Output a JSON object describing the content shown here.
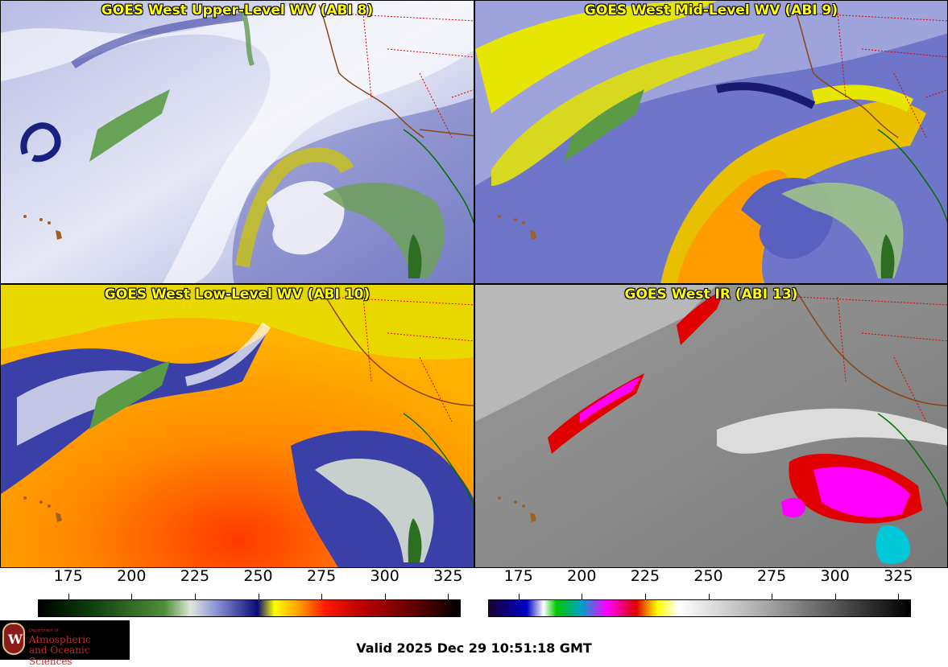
{
  "panels": [
    {
      "title": "GOES West Upper-Level WV (ABI 8)",
      "product": "upper-wv"
    },
    {
      "title": "GOES West Mid-Level WV (ABI 9)",
      "product": "mid-wv"
    },
    {
      "title": "GOES West Low-Level WV (ABI 10)",
      "product": "low-wv"
    },
    {
      "title": "GOES West IR (ABI 13)",
      "product": "ir"
    }
  ],
  "colorbars": {
    "wv": {
      "ticks": [
        "175",
        "200",
        "225",
        "250",
        "275",
        "300",
        "325"
      ],
      "tick_values": [
        175,
        200,
        225,
        250,
        275,
        300,
        325
      ],
      "range": [
        163,
        330
      ],
      "stops": [
        [
          "#000000",
          0
        ],
        [
          "#0d3d0d",
          0.12
        ],
        [
          "#4f8f3a",
          0.3
        ],
        [
          "#dfe8d8",
          0.36
        ],
        [
          "#8f95d8",
          0.42
        ],
        [
          "#0b0b78",
          0.52
        ],
        [
          "#ffff00",
          0.56
        ],
        [
          "#ff9900",
          0.62
        ],
        [
          "#ff1a00",
          0.68
        ],
        [
          "#c20000",
          0.76
        ],
        [
          "#5a0000",
          0.9
        ],
        [
          "#000000",
          1
        ]
      ]
    },
    "ir": {
      "ticks": [
        "175",
        "200",
        "225",
        "250",
        "275",
        "300",
        "325"
      ],
      "tick_values": [
        175,
        200,
        225,
        250,
        275,
        300,
        325
      ],
      "range": [
        163,
        330
      ],
      "stops": [
        [
          "#1a0033",
          0
        ],
        [
          "#0000c8",
          0.09
        ],
        [
          "#ffffff",
          0.13
        ],
        [
          "#00c800",
          0.16
        ],
        [
          "#00a0c8",
          0.22
        ],
        [
          "#ff00ff",
          0.28
        ],
        [
          "#e00000",
          0.35
        ],
        [
          "#ffff00",
          0.4
        ],
        [
          "#ffffff",
          0.45
        ],
        [
          "#aaaaaa",
          0.65
        ],
        [
          "#000000",
          1
        ]
      ]
    }
  },
  "logo": {
    "dept": "Department of",
    "line1": "Atmospheric",
    "line2": "and Oceanic Sciences",
    "seal": "W"
  },
  "valid_time": "Valid 2025 Dec 29 10:51:18 GMT"
}
